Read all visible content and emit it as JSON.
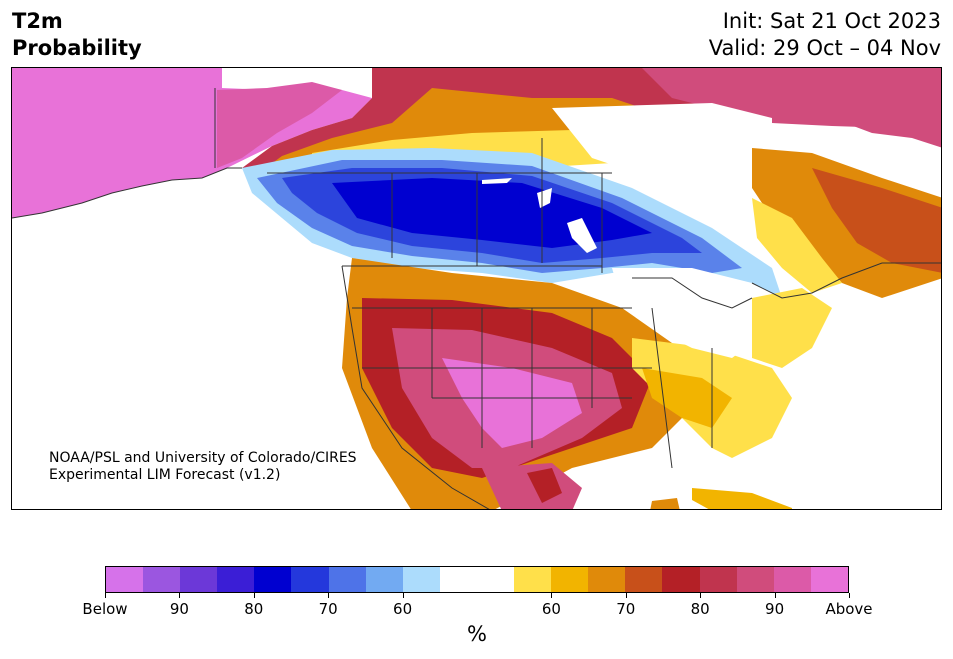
{
  "title": {
    "left_line1": "T2m",
    "left_line2": "Probability",
    "right_line1": "Init: Sat 21 Oct 2023",
    "right_line2": "Valid: 29 Oct – 04 Nov"
  },
  "credit": {
    "line1": "NOAA/PSL and University of Colorado/CIRES",
    "line2": "Experimental LIM Forecast (v1.2)"
  },
  "colorbar": {
    "unit": "%",
    "ticks": [
      "Below",
      "90",
      "80",
      "70",
      "60",
      "60",
      "70",
      "80",
      "90",
      "Above"
    ],
    "colors": [
      "#d672ea",
      "#9b56e0",
      "#6c38d8",
      "#3b1ed6",
      "#0000d0",
      "#2438dc",
      "#4e73e8",
      "#72aaf2",
      "#acdcfc",
      "#ffffff",
      "#ffffff",
      "#ffe04a",
      "#f2b400",
      "#e08a0a",
      "#c8501a",
      "#b42026",
      "#c0344e",
      "#d04c7c",
      "#dc5aa8",
      "#e872d8"
    ]
  },
  "map": {
    "region": "North America",
    "variable": "2-m temperature probability",
    "colors": {
      "below_extreme": "#e46ede",
      "below_strong": "#0000d0",
      "below_moderate": "#2c44dc",
      "below_weak": "#5a82ea",
      "below_slight": "#acdcfc",
      "neutral": "#ffffff",
      "above_slight": "#ffe04a",
      "above_weak": "#f2b400",
      "above_moderate": "#e08a0a",
      "above_strong": "#b42026",
      "above_very": "#d04c7c",
      "above_extreme": "#e872d8"
    }
  }
}
